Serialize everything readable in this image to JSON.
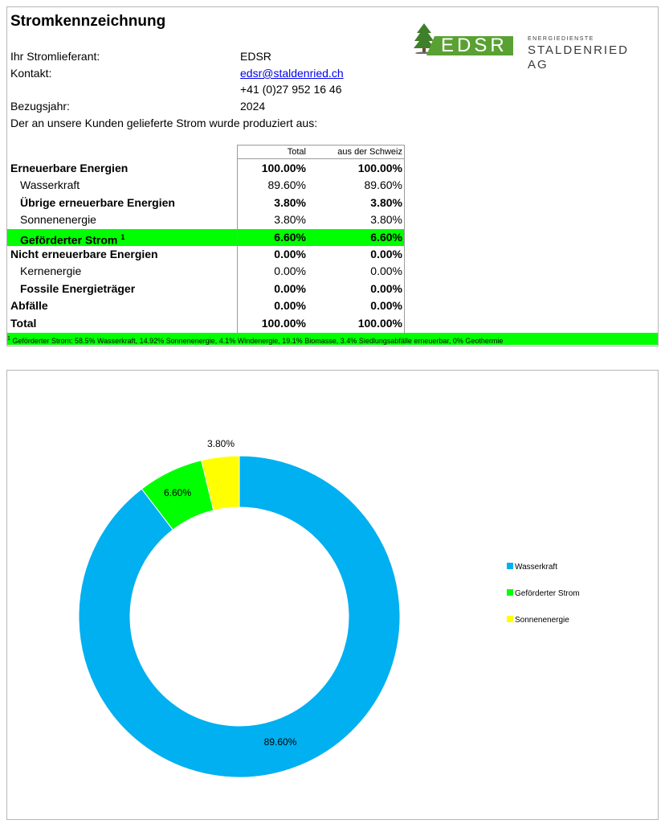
{
  "title": "Stromkennzeichnung",
  "supplier": {
    "label": "Ihr Stromlieferant:",
    "value": "EDSR"
  },
  "contact": {
    "label": "Kontakt:",
    "email": "edsr@staldenried.ch",
    "phone": "+41 (0)27 952 16 46"
  },
  "reference_year": {
    "label": "Bezugsjahr:",
    "value": "2024"
  },
  "intro": "Der an unsere Kunden gelieferte Strom wurde produziert aus:",
  "logo": {
    "short": "EDSR",
    "line1": "ENERGIEDIENSTE",
    "line2": "STALDENRIED AG",
    "brand_color": "#5aa133"
  },
  "table": {
    "headers": {
      "total": "Total",
      "swiss": "aus der Schweiz"
    },
    "rows": [
      {
        "label": "Erneuerbare Energien",
        "total": "100.00%",
        "swiss": "100.00%",
        "bold": true,
        "indent": false,
        "highlight": false
      },
      {
        "label": "Wasserkraft",
        "total": "89.60%",
        "swiss": "89.60%",
        "bold": false,
        "indent": true,
        "highlight": false
      },
      {
        "label": "Übrige erneuerbare Energien",
        "total": "3.80%",
        "swiss": "3.80%",
        "bold": true,
        "indent": true,
        "highlight": false
      },
      {
        "label": "Sonnenenergie",
        "total": "3.80%",
        "swiss": "3.80%",
        "bold": false,
        "indent": true,
        "highlight": false
      },
      {
        "label": "Geförderter Strom",
        "sup": "1",
        "total": "6.60%",
        "swiss": "6.60%",
        "bold": true,
        "indent": true,
        "highlight": true
      },
      {
        "label": "Nicht erneuerbare Energien",
        "total": "0.00%",
        "swiss": "0.00%",
        "bold": true,
        "indent": false,
        "highlight": false
      },
      {
        "label": "Kernenergie",
        "total": "0.00%",
        "swiss": "0.00%",
        "bold": false,
        "indent": true,
        "highlight": false
      },
      {
        "label": "Fossile Energieträger",
        "total": "0.00%",
        "swiss": "0.00%",
        "bold": true,
        "indent": true,
        "highlight": false
      },
      {
        "label": "Abfälle",
        "total": "0.00%",
        "swiss": "0.00%",
        "bold": true,
        "indent": false,
        "highlight": false
      },
      {
        "label": "Total",
        "total": "100.00%",
        "swiss": "100.00%",
        "bold": true,
        "indent": false,
        "highlight": false
      }
    ],
    "highlight_color": "#00ff00"
  },
  "footnote": {
    "sup": "1",
    "text": "Geförderter Strom: 58.5% Wasserkraft, 14.92% Sonnenenergie, 4.1% Windenergie, 19.1% Biomasse, 3.4% Siedlungsabfälle erneuerbar, 0% Geothermie"
  },
  "chart_data": {
    "type": "pie",
    "style": "donut",
    "categories": [
      "Wasserkraft",
      "Geförderter Strom",
      "Sonnenenergie"
    ],
    "values": [
      89.6,
      6.6,
      3.8
    ],
    "data_labels": [
      "89.60%",
      "6.60%",
      "3.80%"
    ],
    "colors": [
      "#00b0f0",
      "#00ff00",
      "#ffff00"
    ],
    "legend_position": "right"
  }
}
